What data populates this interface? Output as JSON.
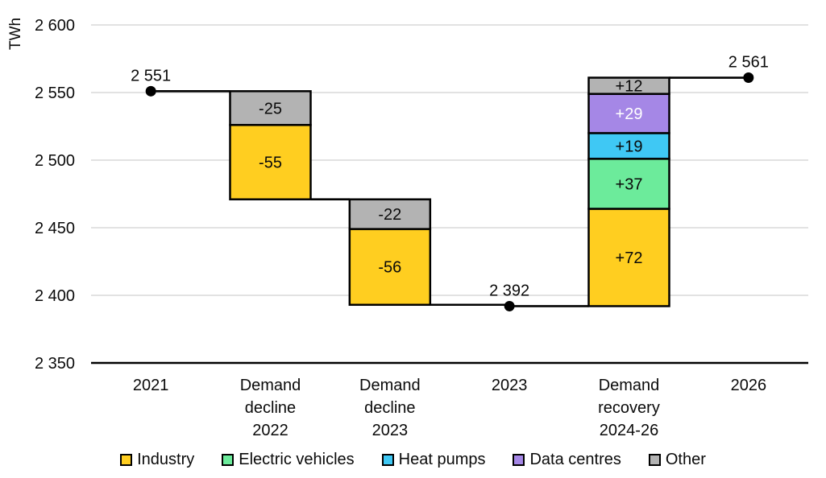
{
  "chart_data": {
    "type": "waterfall",
    "title": "",
    "unit_label": "TWh",
    "y_axis": {
      "min": 2350,
      "max": 2600,
      "step": 50,
      "ticks": [
        {
          "value": 2350,
          "label": "2 350"
        },
        {
          "value": 2400,
          "label": "2 400"
        },
        {
          "value": 2450,
          "label": "2 450"
        },
        {
          "value": 2500,
          "label": "2 500"
        },
        {
          "value": 2550,
          "label": "2 550"
        },
        {
          "value": 2600,
          "label": "2 600"
        }
      ]
    },
    "categories": [
      [
        "2021"
      ],
      [
        "Demand",
        "decline",
        "2022"
      ],
      [
        "Demand",
        "decline",
        "2023"
      ],
      [
        "2023"
      ],
      [
        "Demand",
        "recovery",
        "2024-26"
      ],
      [
        "2026"
      ]
    ],
    "series": {
      "industry": {
        "name": "Industry",
        "color": "#FFCE20"
      },
      "ev": {
        "name": "Electric vehicles",
        "color": "#6CEB9B"
      },
      "heat_pumps": {
        "name": "Heat pumps",
        "color": "#3FC8F4"
      },
      "data_centres": {
        "name": "Data centres",
        "color": "#A587E6"
      },
      "other": {
        "name": "Other",
        "color": "#B3B3B3"
      }
    },
    "legend_order": [
      "industry",
      "ev",
      "heat_pumps",
      "data_centres",
      "other"
    ],
    "sequence": [
      {
        "type": "point",
        "slot": 0,
        "value": 2551,
        "label": "2 551"
      },
      {
        "type": "bar",
        "slot": 1,
        "segments": [
          {
            "series": "other",
            "value": -25,
            "label": "-25"
          },
          {
            "series": "industry",
            "value": -55,
            "label": "-55"
          }
        ]
      },
      {
        "type": "bar",
        "slot": 2,
        "segments": [
          {
            "series": "other",
            "value": -22,
            "label": "-22"
          },
          {
            "series": "industry",
            "value": -56,
            "label": "-56"
          }
        ]
      },
      {
        "type": "point",
        "slot": 3,
        "value": 2392,
        "label": "2 392"
      },
      {
        "type": "bar",
        "slot": 4,
        "segments": [
          {
            "series": "industry",
            "value": 72,
            "label": "+72"
          },
          {
            "series": "ev",
            "value": 37,
            "label": "+37"
          },
          {
            "series": "heat_pumps",
            "value": 19,
            "label": "+19"
          },
          {
            "series": "data_centres",
            "value": 29,
            "label": "+29",
            "label_color": "#ffffff"
          },
          {
            "series": "other",
            "value": 12,
            "label": "+12"
          }
        ]
      },
      {
        "type": "point",
        "slot": 5,
        "value": 2561,
        "label": "2 561"
      }
    ],
    "colors": {
      "gridline": "#D9D9D9",
      "axis": "#000000",
      "connector": "#000000",
      "text": "#0A0A0A",
      "bar_border": "#000000"
    },
    "legend_position": "bottom",
    "grid": true
  }
}
